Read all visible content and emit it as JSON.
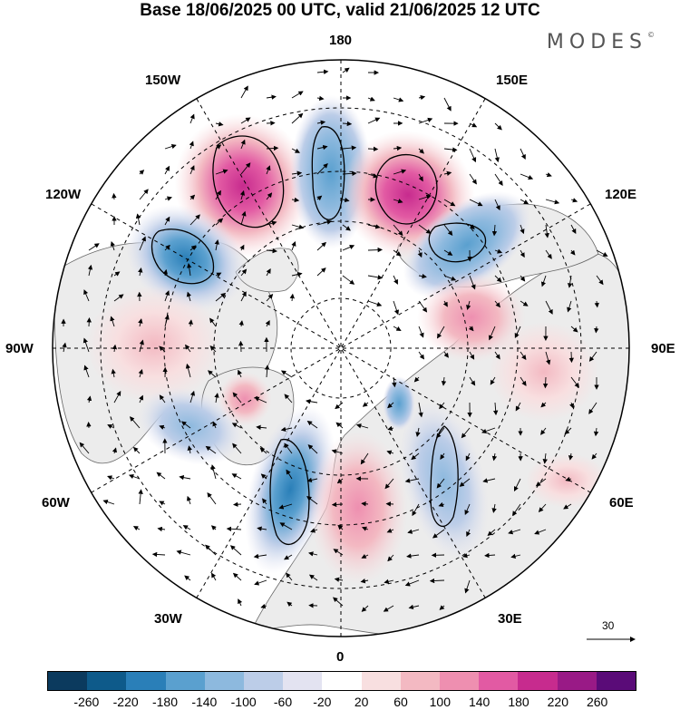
{
  "title": "Base 18/06/2025 00 UTC, valid 21/06/2025 12 UTC",
  "brand": "MODES",
  "brand_mark": "©",
  "longitude_labels": {
    "top": "180",
    "bottom": "0",
    "left": "90W",
    "right": "90E",
    "n150w": "150W",
    "n150e": "150E",
    "n120w": "120W",
    "n120e": "120E",
    "s60w": "60W",
    "s60e": "60E",
    "s30w": "30W",
    "s30e": "30E"
  },
  "reference_vector": {
    "label": "30"
  },
  "colorbar": {
    "colors": [
      "#0b3a5e",
      "#0e5a8a",
      "#2a7fb8",
      "#5aa0cf",
      "#8db9de",
      "#bccde8",
      "#e3e3f1",
      "#ffffff",
      "#f8dfe0",
      "#f3b9c2",
      "#ee8fb0",
      "#e25aa3",
      "#c72b8e",
      "#991a86",
      "#5a0b78"
    ],
    "ticks": [
      "-260",
      "-220",
      "-180",
      "-140",
      "-100",
      "-60",
      "-20",
      "20",
      "60",
      "100",
      "140",
      "180",
      "220",
      "260"
    ]
  },
  "anomaly_centers": [
    {
      "sign": "positive",
      "lon": -160,
      "colat": 35,
      "magnitude": "strong"
    },
    {
      "sign": "negative",
      "lon": -175,
      "colat": 38,
      "magnitude": "moderate"
    },
    {
      "sign": "positive",
      "lon": 160,
      "colat": 38,
      "magnitude": "strong"
    },
    {
      "sign": "negative",
      "lon": 135,
      "colat": 38,
      "magnitude": "moderate"
    },
    {
      "sign": "negative",
      "lon": -130,
      "colat": 40,
      "magnitude": "strong"
    },
    {
      "sign": "positive",
      "lon": -95,
      "colat": 48,
      "magnitude": "weak"
    },
    {
      "sign": "positive",
      "lon": 105,
      "colat": 28,
      "magnitude": "weak"
    },
    {
      "sign": "negative",
      "lon": -70,
      "colat": 45,
      "magnitude": "weak"
    },
    {
      "sign": "negative",
      "lon": -25,
      "colat": 48,
      "magnitude": "moderate"
    },
    {
      "sign": "positive",
      "lon": 5,
      "colat": 42,
      "magnitude": "weak"
    },
    {
      "sign": "negative",
      "lon": 35,
      "colat": 40,
      "magnitude": "weak"
    },
    {
      "sign": "positive",
      "lon": 60,
      "colat": 60,
      "magnitude": "weak"
    }
  ]
}
